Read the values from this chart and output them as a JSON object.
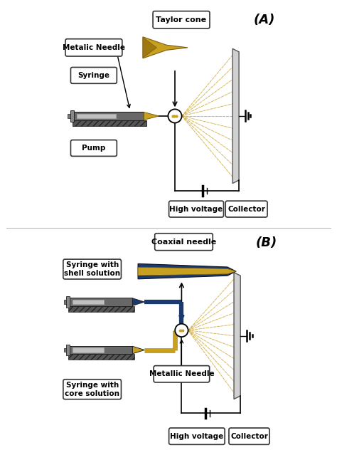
{
  "fig_width": 4.74,
  "fig_height": 6.39,
  "bg_color": "#ffffff",
  "gold": "#C8A020",
  "blue": "#1a3a6e",
  "gray_dark": "#686868",
  "gray_light": "#aaaaaa",
  "gray_inner": "#c0c0c0",
  "gray_plate": "#d0d0d0",
  "gray_plate_edge": "#888888",
  "black": "#000000",
  "label_A": "(A)",
  "label_B": "(B)",
  "panel_A": {
    "taylor_cone": "Taylor cone",
    "metalic_needle": "Metalic Needle",
    "syringe": "Syringe",
    "pump": "Pump",
    "high_voltage": "High voltage",
    "collector": "Collector"
  },
  "panel_B": {
    "coaxial_needle": "Coaxial needle",
    "syringe_shell": "Syringe with\nshell solution",
    "syringe_core": "Syringe with\ncore solution",
    "metallic_needle": "Metallic Needle",
    "high_voltage": "High voltage",
    "collector": "Collector"
  }
}
